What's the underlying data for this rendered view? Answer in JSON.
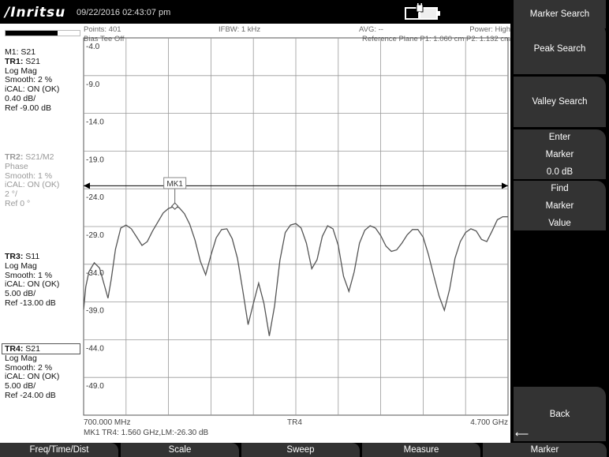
{
  "header": {
    "brand": "/Inritsu",
    "datetime": "09/22/2016 02:43:07 pm",
    "battery_level": 0.4
  },
  "status": {
    "points": "Points: 401",
    "bias_tee": "Bias Tee Off",
    "ifbw": "IFBW: 1 kHz",
    "avg": "AVG: --",
    "power": "Power: High",
    "reference_plane": "Reference Plane P1: 1.060 cm P2: 1.132 cm"
  },
  "left_panel": {
    "indicator_level": 0.7,
    "tr1": {
      "marker": "M1: S21",
      "title": "TR1:",
      "param": " S21",
      "lines": [
        "Log Mag",
        "Smooth: 2 %",
        "iCAL: ON (OK)",
        "0.40 dB/",
        "Ref -9.00 dB"
      ]
    },
    "tr2": {
      "title": "TR2:",
      "param": " S21/M2",
      "lines": [
        "Phase",
        "Smooth: 1 %",
        "iCAL: ON (OK)",
        "2 °/",
        "Ref 0 °"
      ]
    },
    "tr3": {
      "title": "TR3:",
      "param": " S11",
      "lines": [
        "Log Mag",
        "Smooth: 1 %",
        "iCAL: ON (OK)",
        "5.00 dB/",
        "Ref -13.00 dB"
      ]
    },
    "tr4": {
      "title": "TR4:",
      "param": " S21",
      "lines": [
        "Log Mag",
        "Smooth: 2 %",
        "iCAL: ON (OK)",
        "5.00 dB/",
        "Ref -24.00 dB"
      ]
    }
  },
  "plot": {
    "y_labels": [
      "-4.0",
      "-9.0",
      "-14.0",
      "-19.0",
      "-24.0",
      "-29.0",
      "-34.0",
      "-39.0",
      "-44.0",
      "-49.0"
    ],
    "start_freq": "700.000 MHz",
    "stop_freq": "4.700 GHz",
    "trace_name": "TR4",
    "marker_readout": "MK1 TR4:  1.560 GHz,LM:-26.30 dB",
    "marker_label": "MK1"
  },
  "chart_data": {
    "type": "line",
    "x_range_ghz": [
      0.7,
      4.7
    ],
    "ylim": [
      -54,
      -4
    ],
    "ref_line_db": -23.6,
    "marker": {
      "name": "MK1",
      "x_ghz": 1.56,
      "y_db": -26.3
    },
    "series": [
      {
        "name": "TR4",
        "x": [
          0.7,
          0.72,
          0.75,
          0.8,
          0.85,
          0.9,
          0.93,
          0.96,
          1.0,
          1.05,
          1.1,
          1.15,
          1.2,
          1.25,
          1.3,
          1.35,
          1.4,
          1.45,
          1.5,
          1.56,
          1.6,
          1.65,
          1.7,
          1.75,
          1.8,
          1.85,
          1.9,
          1.95,
          2.0,
          2.05,
          2.1,
          2.15,
          2.2,
          2.25,
          2.3,
          2.35,
          2.4,
          2.45,
          2.5,
          2.55,
          2.6,
          2.65,
          2.7,
          2.75,
          2.8,
          2.85,
          2.9,
          2.95,
          3.0,
          3.05,
          3.1,
          3.15,
          3.2,
          3.25,
          3.3,
          3.35,
          3.4,
          3.45,
          3.5,
          3.55,
          3.6,
          3.65,
          3.7,
          3.75,
          3.8,
          3.85,
          3.9,
          3.95,
          4.0,
          4.05,
          4.1,
          4.15,
          4.2,
          4.25,
          4.3,
          4.35,
          4.4,
          4.45,
          4.5,
          4.55,
          4.6,
          4.65,
          4.7
        ],
        "y": [
          -40,
          -37,
          -35,
          -33.8,
          -34.5,
          -37,
          -38.5,
          -36,
          -32,
          -29.2,
          -28.8,
          -29.3,
          -30.4,
          -31.5,
          -31,
          -29.6,
          -28.4,
          -27.2,
          -26.6,
          -26.3,
          -26.5,
          -27.3,
          -28.7,
          -30.8,
          -33.6,
          -35.4,
          -32.8,
          -30.5,
          -29.4,
          -29.3,
          -30.6,
          -33.2,
          -37.5,
          -42,
          -39.2,
          -36.5,
          -39.2,
          -43.5,
          -39.5,
          -33.5,
          -29.8,
          -28.8,
          -28.6,
          -29.2,
          -31.2,
          -34.6,
          -33.4,
          -30.3,
          -28.9,
          -29.3,
          -31.5,
          -35.6,
          -37.6,
          -35,
          -31.2,
          -29.5,
          -28.9,
          -29.2,
          -30.2,
          -31.6,
          -32.3,
          -32.1,
          -31.2,
          -30.1,
          -29.4,
          -29.4,
          -30.4,
          -32.7,
          -35.5,
          -38.2,
          -40.1,
          -37.3,
          -33.2,
          -31,
          -29.8,
          -29.3,
          -29.6,
          -30.7,
          -31,
          -29.6,
          -28.1,
          -27.7,
          -27.7
        ]
      }
    ]
  },
  "softkeys": {
    "title": "Marker Search",
    "peak_search": "Peak Search",
    "valley_search": "Valley Search",
    "enter_marker": [
      "Enter",
      "Marker",
      "0.0 dB"
    ],
    "find_marker": [
      "Find",
      "Marker",
      "Value"
    ],
    "back": "Back",
    "back_arrow": "⟵"
  },
  "menu": [
    "Freq/Time/Dist",
    "Scale",
    "Sweep",
    "Measure",
    "Marker"
  ],
  "colors": {
    "trace": "#555555",
    "background": "#ffffff",
    "frame": "#000000",
    "softkey": "#333333"
  }
}
